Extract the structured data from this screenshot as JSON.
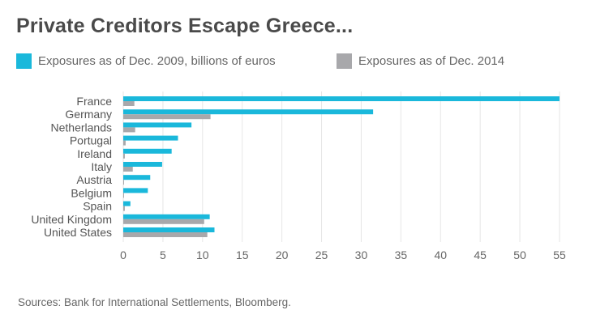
{
  "title": "Private Creditors Escape Greece...",
  "legend": [
    {
      "label": "Exposures as of Dec. 2009, billions of euros",
      "color": "#1ab8db"
    },
    {
      "label": "Exposures as of Dec. 2014",
      "color": "#a8a8ab"
    }
  ],
  "source": "Sources: Bank for International Settlements, Bloomberg.",
  "chart_data": {
    "type": "bar",
    "orientation": "horizontal",
    "categories": [
      "France",
      "Germany",
      "Netherlands",
      "Portugal",
      "Ireland",
      "Italy",
      "Austria",
      "Belgium",
      "Spain",
      "United Kingdom",
      "United States"
    ],
    "series": [
      {
        "name": "Exposures as of Dec. 2009, billions of euros",
        "color": "#1ab8db",
        "values": [
          55,
          31.5,
          8.6,
          6.9,
          6.1,
          4.9,
          3.4,
          3.1,
          0.9,
          10.9,
          11.5
        ]
      },
      {
        "name": "Exposures as of Dec. 2014",
        "color": "#a8a8ab",
        "values": [
          1.4,
          11,
          1.5,
          0.3,
          0.2,
          1.2,
          0.1,
          0.1,
          0.2,
          10.2,
          10.6
        ]
      }
    ],
    "xlim": [
      0,
      55
    ],
    "xticks": [
      0,
      5,
      10,
      15,
      20,
      25,
      30,
      35,
      40,
      45,
      50,
      55
    ],
    "xlabel": "",
    "ylabel": "",
    "grid": "vertical"
  }
}
